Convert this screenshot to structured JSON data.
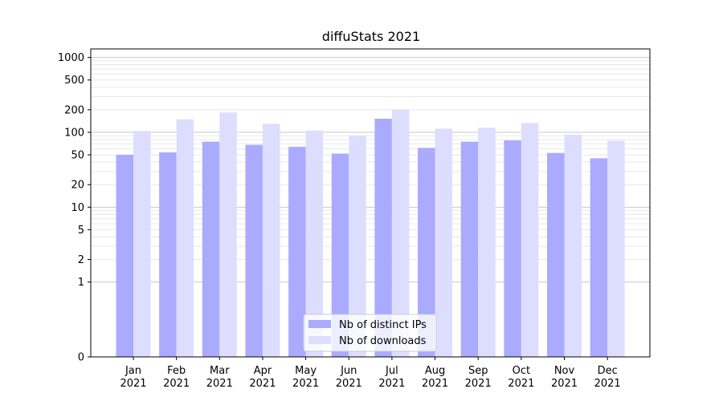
{
  "chart_data": {
    "type": "bar",
    "title": "diffuStats 2021",
    "xlabel": "",
    "ylabel": "",
    "yscale": "symlog",
    "ylim": [
      0,
      1300
    ],
    "yticks": [
      0,
      1,
      2,
      5,
      10,
      20,
      50,
      100,
      200,
      500,
      1000
    ],
    "categories": [
      "Jan\n2021",
      "Feb\n2021",
      "Mar\n2021",
      "Apr\n2021",
      "May\n2021",
      "Jun\n2021",
      "Jul\n2021",
      "Aug\n2021",
      "Sep\n2021",
      "Oct\n2021",
      "Nov\n2021",
      "Dec\n2021"
    ],
    "series": [
      {
        "name": "Nb of distinct IPs",
        "color": "#aaaaff",
        "values": [
          50,
          54,
          75,
          68,
          64,
          52,
          152,
          62,
          75,
          78,
          53,
          45
        ]
      },
      {
        "name": "Nb of downloads",
        "color": "#ddddff",
        "values": [
          104,
          149,
          184,
          130,
          106,
          90,
          200,
          112,
          115,
          133,
          93,
          77
        ]
      }
    ],
    "grid": true,
    "legend": "lower center"
  }
}
